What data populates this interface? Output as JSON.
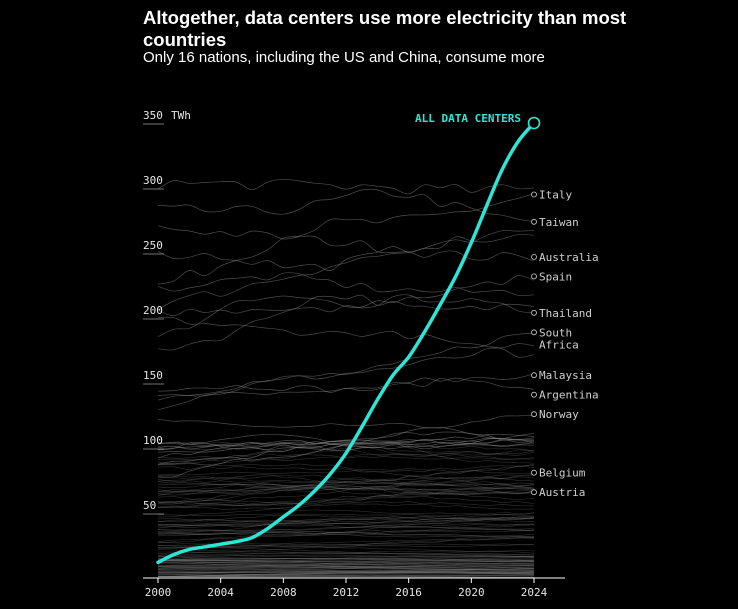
{
  "title": "Altogether, data centers use more electricity than most countries",
  "subtitle": "Only 16 nations, including the US and China, consume more",
  "chart_data": {
    "type": "line",
    "ylabel_unit": "TWh",
    "ylim": [
      0,
      350
    ],
    "xlim": [
      2000,
      2024
    ],
    "y_ticks": [
      {
        "value": 50,
        "label": "50"
      },
      {
        "value": 100,
        "label": "100"
      },
      {
        "value": 150,
        "label": "150"
      },
      {
        "value": 200,
        "label": "200"
      },
      {
        "value": 250,
        "label": "250"
      },
      {
        "value": 300,
        "label": "300"
      },
      {
        "value": 350,
        "label": "350"
      }
    ],
    "x_ticks": [
      {
        "value": 2000,
        "label": "2000"
      },
      {
        "value": 2004,
        "label": "2004"
      },
      {
        "value": 2008,
        "label": "2008"
      },
      {
        "value": 2012,
        "label": "2012"
      },
      {
        "value": 2016,
        "label": "2016"
      },
      {
        "value": 2020,
        "label": "2020"
      },
      {
        "value": 2024,
        "label": "2024"
      }
    ],
    "highlight_series": {
      "name": "ALL DATA CENTERS",
      "color": "#2ee6d6",
      "x": [
        2000,
        2001,
        2002,
        2003,
        2004,
        2005,
        2006,
        2007,
        2008,
        2009,
        2010,
        2011,
        2012,
        2013,
        2014,
        2015,
        2016,
        2017,
        2018,
        2019,
        2020,
        2021,
        2022,
        2023,
        2024
      ],
      "y": [
        12,
        18,
        22,
        24,
        26,
        28,
        31,
        38,
        47,
        56,
        67,
        80,
        96,
        116,
        137,
        156,
        170,
        189,
        210,
        232,
        258,
        287,
        315,
        336,
        350
      ]
    },
    "labeled_countries": [
      {
        "name": "Italy",
        "value": 295
      },
      {
        "name": "Taiwan",
        "value": 274
      },
      {
        "name": "Australia",
        "value": 247
      },
      {
        "name": "Spain",
        "value": 232
      },
      {
        "name": "Thailand",
        "value": 204
      },
      {
        "name": "South Africa",
        "value": 189
      },
      {
        "name": "Malaysia",
        "value": 156
      },
      {
        "name": "Argentina",
        "value": 141
      },
      {
        "name": "Norway",
        "value": 126
      },
      {
        "name": "Belgium",
        "value": 81
      },
      {
        "name": "Austria",
        "value": 66
      }
    ],
    "background_series_color": "#8a8a8a",
    "grid": false
  }
}
